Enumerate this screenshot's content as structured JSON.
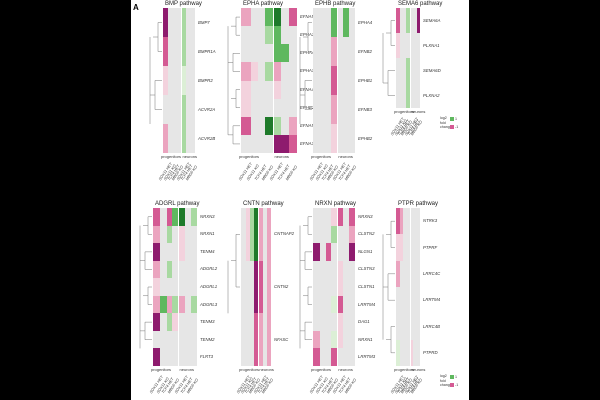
{
  "figure": {
    "panel_letter": "A",
    "colors": {
      "na": "#e6e6e6",
      "p3": "#1e7a2a",
      "p2": "#5fb85f",
      "p1": "#a8d9a1",
      "p0": "#dcefd6",
      "n0": "#f3d2dd",
      "n1": "#eba4bf",
      "n2": "#d45a93",
      "n3": "#8e1b6e"
    },
    "column_labels": [
      "SOX11 HET",
      "SOX11 KO",
      "TCF4 HET",
      "MBD5 KO",
      "SOX11 HET",
      "TCF4 HET",
      "MBD5 KO"
    ],
    "sublabels": {
      "progenitors": "progenitors",
      "neurons": "neurons"
    },
    "legend": {
      "title": "log2 fold change",
      "lines": [
        "log2",
        "fold",
        "change"
      ],
      "pos": "1",
      "neg": "-1"
    },
    "panels": [
      {
        "title": "BMP pathway",
        "genes": [
          "BMP7",
          "BMPR1A",
          "BMPR2",
          "ACVR2A",
          "ACVR2B"
        ],
        "cells": [
          [
            "n3",
            "na",
            "na",
            "na",
            "p1",
            "na",
            "na"
          ],
          [
            "n2",
            "na",
            "na",
            "na",
            "p1",
            "na",
            "na"
          ],
          [
            "n0",
            "na",
            "na",
            "na",
            "p0",
            "na",
            "na"
          ],
          [
            "na",
            "na",
            "na",
            "na",
            "p1",
            "na",
            "na"
          ],
          [
            "n1",
            "na",
            "na",
            "na",
            "p1",
            "na",
            "na"
          ]
        ],
        "show_col_labels": true
      },
      {
        "title": "EPHA pathway",
        "genes": [
          "EFNA5",
          "EPHA3",
          "EPHA4",
          "EPHA7",
          "EFNA4",
          "EPHB2",
          "EFNA5",
          "EFNA3"
        ],
        "cells": [
          [
            "n1",
            "na",
            "na",
            "p2",
            "p3",
            "na",
            "n2"
          ],
          [
            "na",
            "na",
            "na",
            "p1",
            "p2",
            "na",
            "na"
          ],
          [
            "na",
            "na",
            "na",
            "na",
            "p2",
            "p2",
            "na"
          ],
          [
            "n1",
            "n0",
            "na",
            "p1",
            "n1",
            "na",
            "na"
          ],
          [
            "n0",
            "na",
            "na",
            "na",
            "n0",
            "na",
            "na"
          ],
          [
            "n0",
            "na",
            "na",
            "na",
            "na",
            "na",
            "na"
          ],
          [
            "n2",
            "na",
            "na",
            "p3",
            "p1",
            "na",
            "n1"
          ],
          [
            "na",
            "na",
            "na",
            "na",
            "n3",
            "n3",
            "n2"
          ]
        ],
        "show_col_labels": true
      },
      {
        "title": "EPHB pathway",
        "genes": [
          "EPHA4",
          "EFNB2",
          "EPHB1",
          "EFNB3",
          "EPHB2"
        ],
        "cells": [
          [
            "na",
            "na",
            "na",
            "p2",
            "na",
            "p2",
            "na"
          ],
          [
            "na",
            "na",
            "na",
            "n1",
            "na",
            "na",
            "na"
          ],
          [
            "na",
            "na",
            "na",
            "n2",
            "na",
            "na",
            "na"
          ],
          [
            "na",
            "na",
            "na",
            "n1",
            "na",
            "na",
            "na"
          ],
          [
            "na",
            "na",
            "na",
            "n0",
            "na",
            "na",
            "na"
          ]
        ],
        "show_col_labels": true
      },
      {
        "title": "SEMA6 pathway",
        "genes": [
          "SEMA6A",
          "PLXNA1",
          "SEMA6D",
          "PLXNA2"
        ],
        "cells": [
          [
            "n2",
            "na",
            "na",
            "p1",
            "na",
            "na",
            "n3"
          ],
          [
            "n0",
            "na",
            "na",
            "na",
            "na",
            "na",
            "na"
          ],
          [
            "na",
            "na",
            "na",
            "p1",
            "na",
            "na",
            "na"
          ],
          [
            "na",
            "na",
            "na",
            "p1",
            "na",
            "na",
            "na"
          ]
        ],
        "show_col_labels": true,
        "legend": true
      },
      {
        "title": "ADGRL pathway",
        "genes": [
          "NRXN3",
          "NRXN1",
          "TENM4",
          "ADGRL2",
          "ADGRL1",
          "ADGRL3",
          "TENM3",
          "TENM2",
          "FLRT3"
        ],
        "cells": [
          [
            "n2",
            "na",
            "n2",
            "p2",
            "p3",
            "na",
            "p1"
          ],
          [
            "n1",
            "na",
            "p1",
            "na",
            "n0",
            "na",
            "na"
          ],
          [
            "n3",
            "na",
            "na",
            "na",
            "n0",
            "na",
            "na"
          ],
          [
            "n1",
            "na",
            "p1",
            "na",
            "na",
            "na",
            "na"
          ],
          [
            "n0",
            "na",
            "na",
            "na",
            "na",
            "na",
            "na"
          ],
          [
            "n1",
            "p2",
            "n1",
            "p1",
            "n1",
            "na",
            "p1"
          ],
          [
            "n3",
            "na",
            "p1",
            "n0",
            "na",
            "na",
            "na"
          ],
          [
            "na",
            "na",
            "na",
            "na",
            "na",
            "na",
            "na"
          ],
          [
            "n3",
            "na",
            "na",
            "na",
            "na",
            "na",
            "na"
          ]
        ],
        "show_col_labels": true
      },
      {
        "title": "CNTN pathway",
        "genes": [
          "CNTNAP2",
          "CNTN2",
          "NFASC"
        ],
        "cells": [
          [
            "na",
            "n0",
            "p1",
            "p3",
            "n1",
            "na",
            "n1"
          ],
          [
            "na",
            "na",
            "na",
            "n3",
            "n2",
            "na",
            "n1"
          ],
          [
            "na",
            "na",
            "na",
            "n2",
            "n1",
            "na",
            "n1"
          ]
        ],
        "show_col_labels": true
      },
      {
        "title": "NRXN pathway",
        "genes": [
          "NRXN3",
          "CLSTN2",
          "NLGN1",
          "CLSTN3",
          "CLSTN1",
          "LRRTM4",
          "DAG1",
          "NRXN1",
          "LRRTM3"
        ],
        "cells": [
          [
            "na",
            "na",
            "na",
            "n0",
            "n2",
            "na",
            "n2"
          ],
          [
            "na",
            "na",
            "na",
            "p1",
            "na",
            "na",
            "n1"
          ],
          [
            "n3",
            "na",
            "n2",
            "na",
            "na",
            "na",
            "n3"
          ],
          [
            "na",
            "na",
            "na",
            "na",
            "n0",
            "na",
            "na"
          ],
          [
            "na",
            "na",
            "na",
            "na",
            "n0",
            "na",
            "na"
          ],
          [
            "na",
            "na",
            "na",
            "p0",
            "n2",
            "na",
            "na"
          ],
          [
            "na",
            "na",
            "na",
            "na",
            "n0",
            "na",
            "na"
          ],
          [
            "n1",
            "na",
            "na",
            "p0",
            "n0",
            "na",
            "na"
          ],
          [
            "n2",
            "na",
            "na",
            "n2",
            "na",
            "na",
            "na"
          ]
        ],
        "show_col_labels": true
      },
      {
        "title": "PTPR pathway",
        "genes": [
          "NTRK3",
          "PTPRF",
          "LRRC4C",
          "LRRTM4",
          "LRRC4B",
          "PTPRD"
        ],
        "cells": [
          [
            "n2",
            "n1",
            "na",
            "na",
            "na",
            "na",
            "na"
          ],
          [
            "n0",
            "n0",
            "na",
            "na",
            "na",
            "na",
            "na"
          ],
          [
            "n1",
            "na",
            "na",
            "na",
            "na",
            "na",
            "na"
          ],
          [
            "na",
            "na",
            "na",
            "na",
            "na",
            "na",
            "na"
          ],
          [
            "na",
            "na",
            "na",
            "na",
            "na",
            "na",
            "na"
          ],
          [
            "p0",
            "na",
            "na",
            "na",
            "n0",
            "na",
            "na"
          ]
        ],
        "show_col_labels": true,
        "legend": true
      }
    ]
  }
}
